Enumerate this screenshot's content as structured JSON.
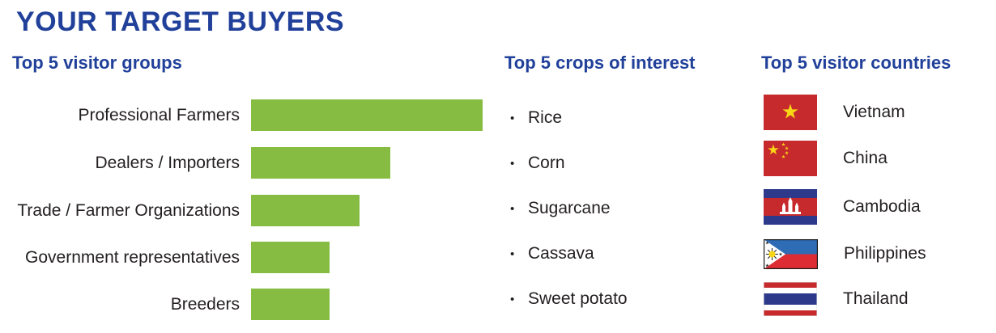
{
  "page": {
    "title": "YOUR TARGET BUYERS"
  },
  "colors": {
    "heading_blue": "#21409a",
    "bar_green": "#85bc41",
    "text_black": "#231f20",
    "flag_red": "#c62a2d",
    "flag_yellow": "#f9d616",
    "flag_navy": "#2d3a8c",
    "philippines_blue": "#2e6cb5",
    "philippines_red": "#dd2c33"
  },
  "chart_data": {
    "type": "bar",
    "orientation": "horizontal",
    "title": "Top 5 visitor groups",
    "categories": [
      "Professional Farmers",
      "Dealers / Importers",
      "Trade / Farmer Organizations",
      "Government representatives",
      "Breeders"
    ],
    "values": [
      100,
      60,
      47,
      34,
      34
    ],
    "value_unit": "relative bar length (longest bar = 100, no numeric axis shown)",
    "bar_color": "#85bc41",
    "axes_hidden": true,
    "grid": false,
    "legend": "none"
  },
  "crops": {
    "title": "Top 5 crops of interest",
    "bullet": "•",
    "items": [
      "Rice",
      "Corn",
      "Sugarcane",
      "Cassava",
      "Sweet potato"
    ]
  },
  "countries": {
    "title": "Top 5 visitor countries",
    "items": [
      {
        "name": "Vietnam",
        "flag": "vietnam-flag"
      },
      {
        "name": "China",
        "flag": "china-flag"
      },
      {
        "name": "Cambodia",
        "flag": "cambodia-flag"
      },
      {
        "name": "Philippines",
        "flag": "philippines-flag"
      },
      {
        "name": "Thailand",
        "flag": "thailand-flag"
      }
    ]
  }
}
